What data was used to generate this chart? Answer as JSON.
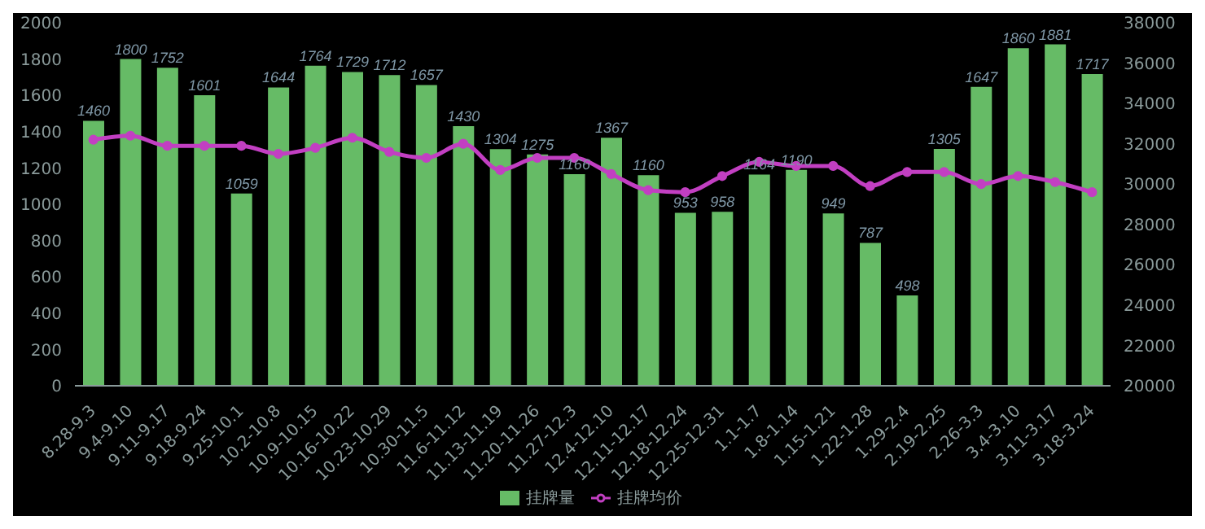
{
  "chart_data": {
    "type": "bar",
    "categories": [
      "8.28-9.3",
      "9.4-9.10",
      "9.11-9.17",
      "9.18-9.24",
      "9.25-10.1",
      "10.2-10.8",
      "10.9-10.15",
      "10.16-10.22",
      "10.23-10.29",
      "10.30-11.5",
      "11.6-11.12",
      "11.13-11.19",
      "11.20-11.26",
      "11.27-12.3",
      "12.4-12.10",
      "12.11-12.17",
      "12.18-12.24",
      "12.25-12.31",
      "1.1-1.7",
      "1.8-1.14",
      "1.15-1.21",
      "1.22-1.28",
      "1.29-2.4",
      "2.19-2.25",
      "2.26-3.3",
      "3.4-3.10",
      "3.11-3.17",
      "3.18-3.24"
    ],
    "series": [
      {
        "name": "挂牌量",
        "color": "#66bb66",
        "data_labels": true,
        "values": [
          1460,
          1800,
          1752,
          1601,
          1059,
          1644,
          1764,
          1729,
          1712,
          1657,
          1430,
          1304,
          1275,
          1166,
          1367,
          1160,
          953,
          958,
          1164,
          1190,
          949,
          787,
          498,
          1305,
          1647,
          1860,
          1881,
          1717
        ]
      },
      {
        "name": "挂牌均价",
        "type": "line",
        "axis": "y2",
        "color": "#c23fc2",
        "marker": "circle",
        "line_style": "solid",
        "values": [
          32200,
          32400,
          31900,
          31900,
          31900,
          31500,
          31800,
          32300,
          31600,
          31300,
          32000,
          30700,
          31300,
          31300,
          30500,
          29700,
          29600,
          30400,
          31100,
          30900,
          30900,
          29900,
          30600,
          30600,
          30000,
          30400,
          30100,
          29600
        ]
      }
    ],
    "ylim": [
      0,
      2000
    ],
    "yticks": [
      0,
      200,
      400,
      600,
      800,
      1000,
      1200,
      1400,
      1600,
      1800,
      2000
    ],
    "y2lim": [
      20000,
      38000
    ],
    "y2ticks": [
      20000,
      22000,
      24000,
      26000,
      28000,
      30000,
      32000,
      34000,
      36000,
      38000
    ],
    "grid": false,
    "legend": "bottom"
  }
}
